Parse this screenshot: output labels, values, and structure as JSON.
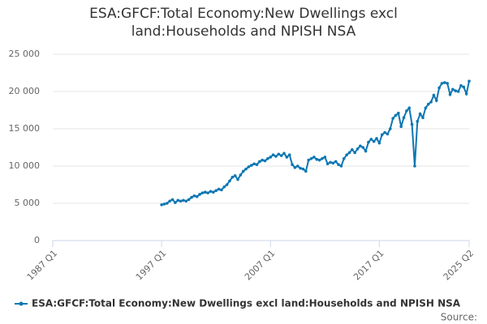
{
  "chart_data": {
    "type": "line",
    "title": "ESA:GFCF:Total Economy:New Dwellings excl land:Households and NPISH NSA",
    "source": "Source:",
    "categories": [
      "1987 Q1",
      null,
      null,
      null,
      null,
      null,
      null,
      null,
      null,
      null,
      null,
      null,
      null,
      null,
      null,
      null,
      null,
      null,
      null,
      null,
      null,
      null,
      null,
      null,
      null,
      null,
      null,
      null,
      null,
      null,
      null,
      null,
      null,
      null,
      null,
      null,
      null,
      null,
      null,
      null,
      "1997 Q1",
      null,
      null,
      null,
      null,
      null,
      null,
      null,
      null,
      null,
      null,
      null,
      null,
      null,
      null,
      null,
      null,
      null,
      null,
      null,
      null,
      null,
      null,
      null,
      null,
      null,
      null,
      null,
      null,
      null,
      null,
      null,
      null,
      null,
      null,
      null,
      null,
      null,
      null,
      null,
      "2007 Q1",
      null,
      null,
      null,
      null,
      null,
      null,
      null,
      null,
      null,
      null,
      null,
      null,
      null,
      null,
      null,
      null,
      null,
      null,
      null,
      null,
      null,
      null,
      null,
      null,
      null,
      null,
      null,
      null,
      null,
      null,
      null,
      null,
      null,
      null,
      null,
      null,
      null,
      null,
      null,
      "2017 Q1",
      null,
      null,
      null,
      null,
      null,
      null,
      null,
      null,
      null,
      null,
      null,
      null,
      null,
      null,
      null,
      null,
      null,
      null,
      null,
      null,
      null,
      null,
      null,
      null,
      null,
      null,
      null,
      null,
      null,
      null,
      null,
      null,
      "2025 Q2"
    ],
    "series": [
      {
        "name": "ESA:GFCF:Total Economy:New Dwellings excl land:Households and NPISH NSA",
        "color": "#0d77b3",
        "values": [
          null,
          null,
          null,
          null,
          null,
          null,
          null,
          null,
          null,
          null,
          null,
          null,
          null,
          null,
          null,
          null,
          null,
          null,
          null,
          null,
          null,
          null,
          null,
          null,
          null,
          null,
          null,
          null,
          null,
          null,
          null,
          null,
          null,
          null,
          null,
          null,
          null,
          null,
          null,
          null,
          4800,
          4900,
          5000,
          5300,
          5500,
          5100,
          5400,
          5300,
          5400,
          5300,
          5500,
          5800,
          6000,
          5900,
          6200,
          6400,
          6500,
          6400,
          6600,
          6500,
          6700,
          6900,
          6800,
          7200,
          7500,
          8000,
          8500,
          8700,
          8200,
          8800,
          9300,
          9600,
          9900,
          10100,
          10300,
          10200,
          10600,
          10800,
          10700,
          11000,
          11200,
          11500,
          11300,
          11600,
          11400,
          11700,
          11200,
          11500,
          10200,
          9800,
          10000,
          9700,
          9600,
          9300,
          10800,
          11000,
          11200,
          10900,
          10800,
          11000,
          11200,
          10300,
          10500,
          10400,
          10600,
          10200,
          10000,
          11000,
          11500,
          11800,
          12200,
          11800,
          12300,
          12700,
          12500,
          12000,
          13200,
          13600,
          13300,
          13700,
          13100,
          14200,
          14500,
          14300,
          15000,
          16400,
          16800,
          17100,
          15300,
          16500,
          17400,
          17800,
          15600,
          10000,
          16000,
          17000,
          16500,
          17800,
          18300,
          18600,
          19500,
          18800,
          20500,
          21100,
          21200,
          21100,
          19600,
          20300,
          20100,
          20000,
          20800,
          20600,
          19700,
          21400
        ]
      }
    ],
    "ylim": [
      0,
      25000
    ],
    "yticks": [
      0,
      {
        "value": 5000,
        "label": "5 000"
      },
      {
        "value": 10000,
        "label": "10 000"
      },
      {
        "value": 15000,
        "label": "15 000"
      },
      {
        "value": 20000,
        "label": "20 000"
      },
      {
        "value": 25000,
        "label": "25 000"
      }
    ],
    "grid": true,
    "legend": "bottom"
  }
}
